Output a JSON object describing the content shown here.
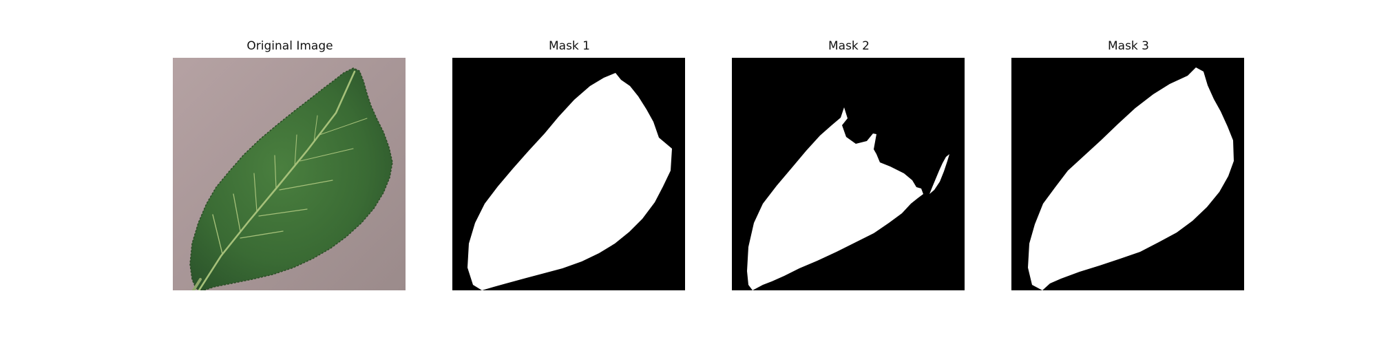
{
  "figure": {
    "panels": [
      {
        "title": "Original Image"
      },
      {
        "title": "Mask 1"
      },
      {
        "title": "Mask 2"
      },
      {
        "title": "Mask 3"
      }
    ]
  },
  "colors": {
    "background": "#ffffff",
    "mask_background": "#000000",
    "mask_foreground": "#ffffff",
    "leaf_dark": "#2f5f2c",
    "leaf_mid": "#3f7636",
    "leaf_vein": "#a6c17a",
    "surface": "#a89696"
  }
}
